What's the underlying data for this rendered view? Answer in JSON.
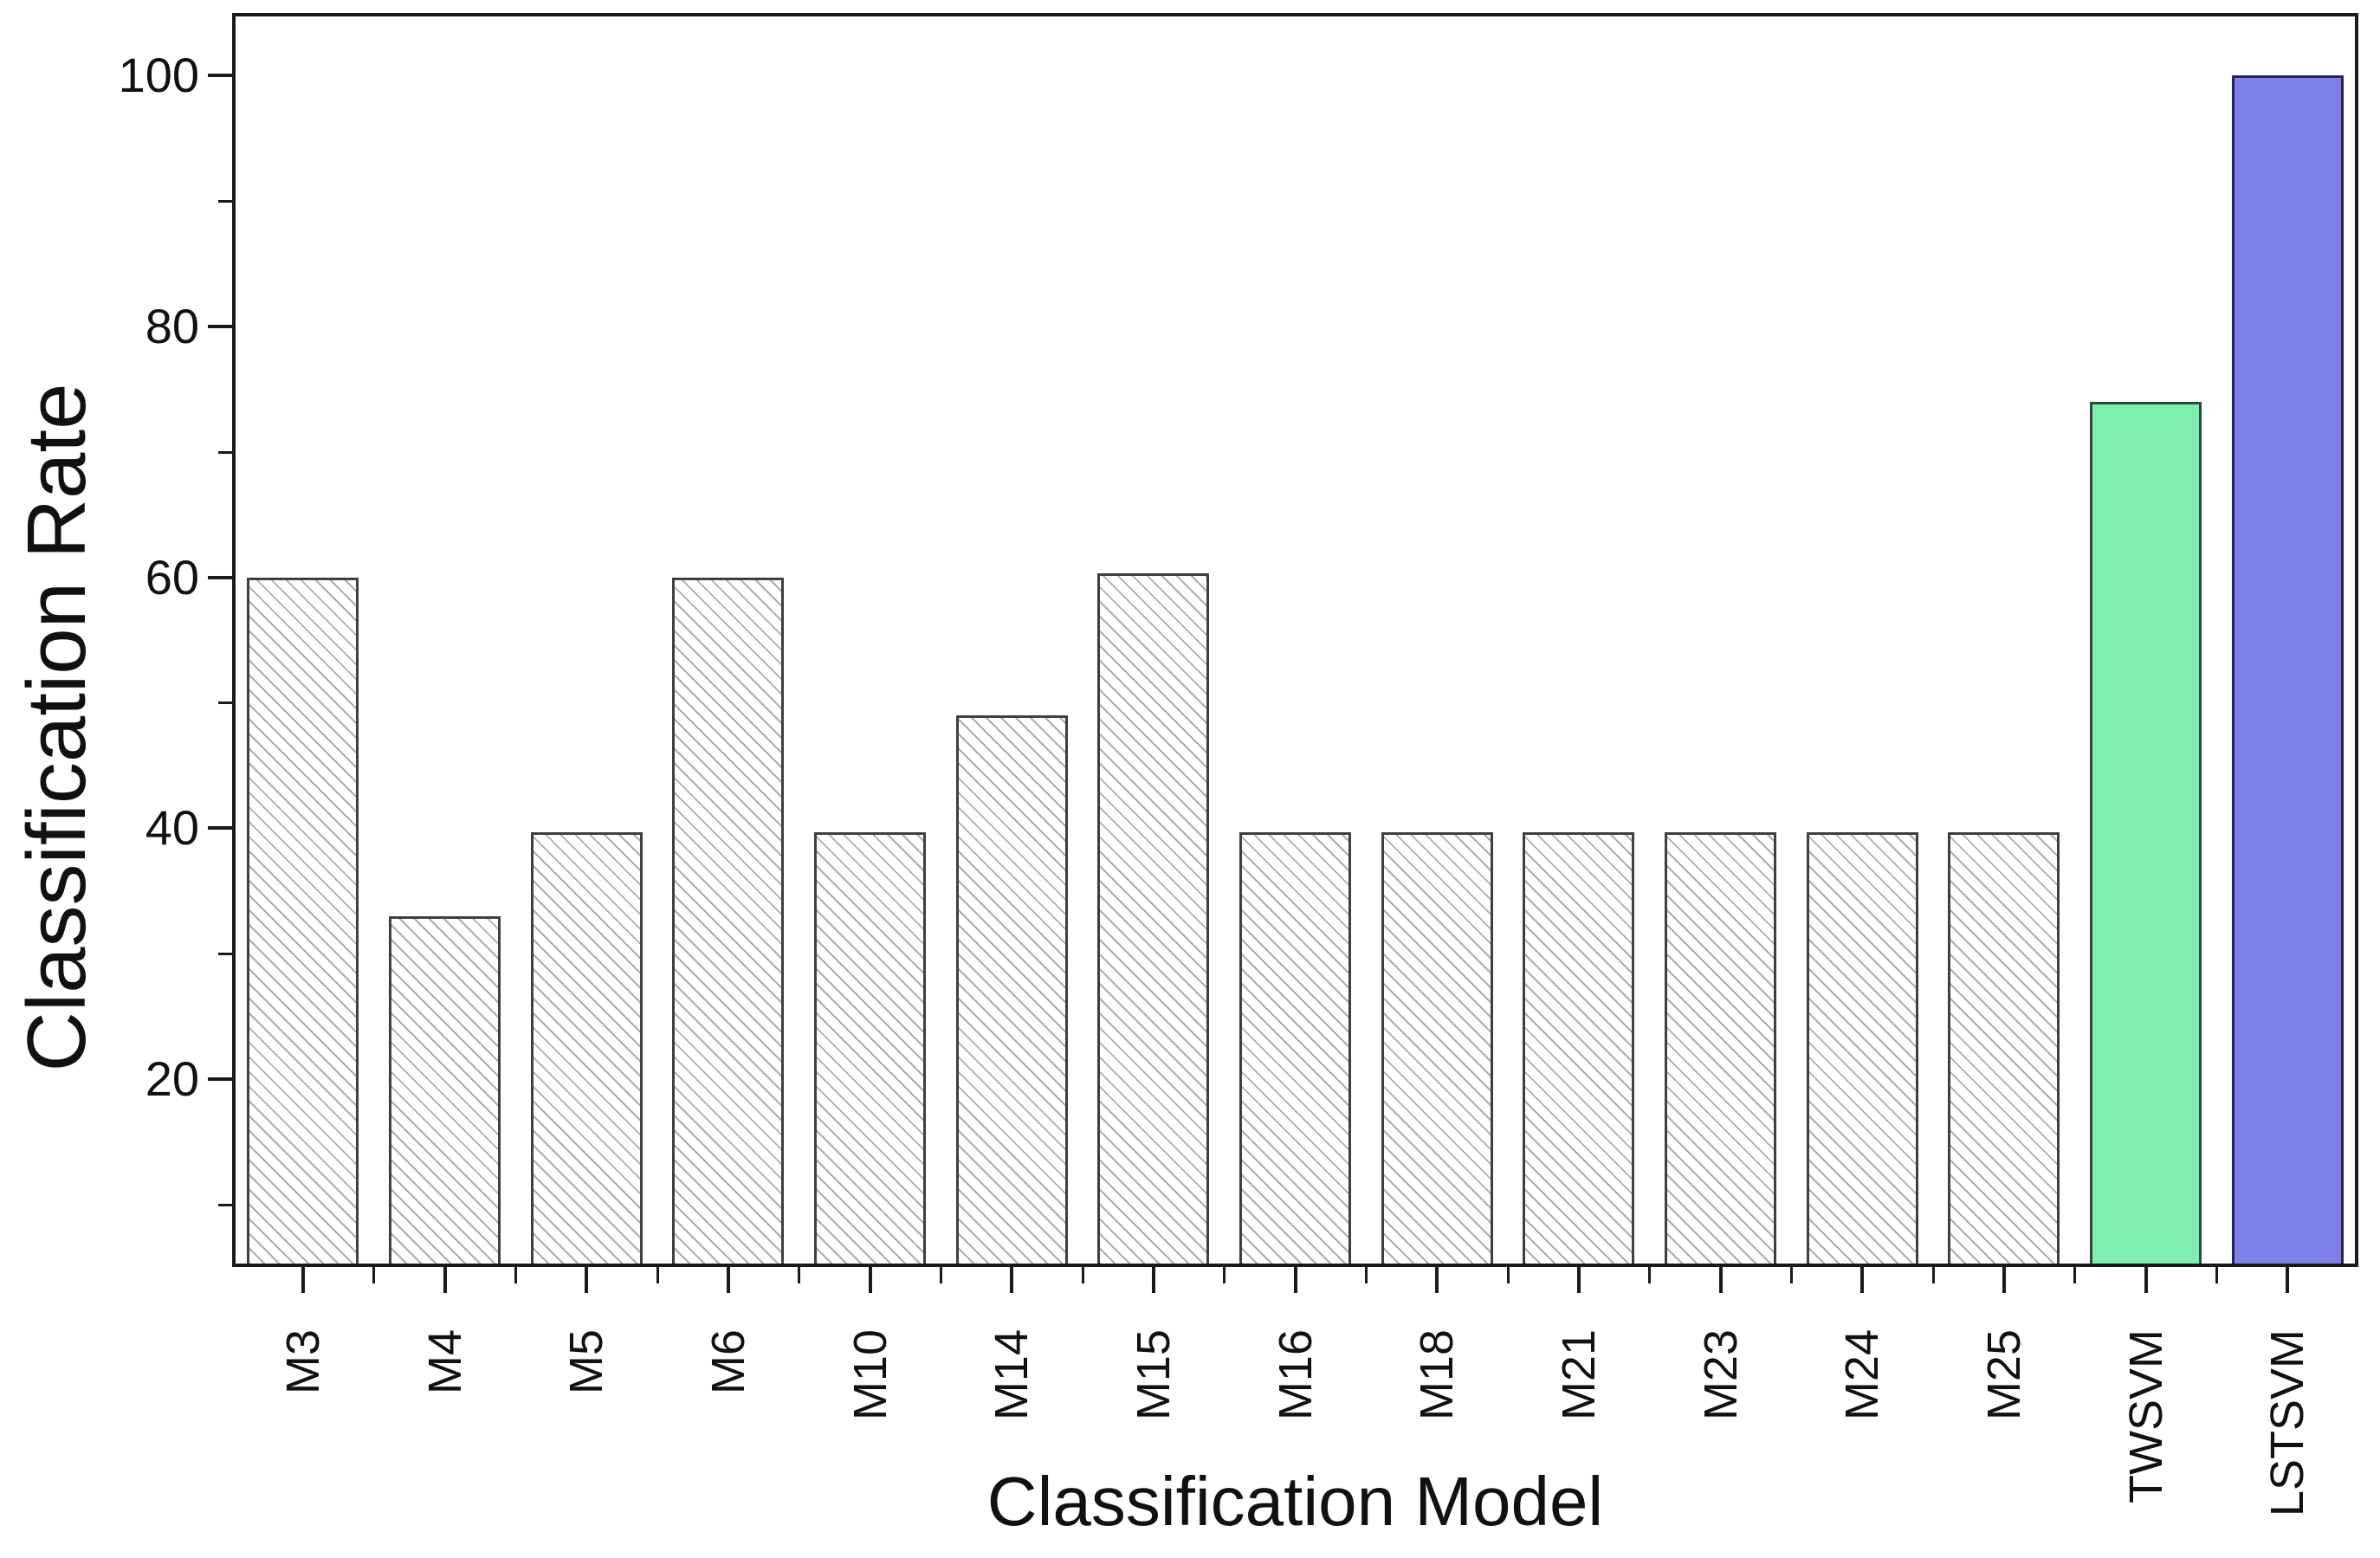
{
  "chart_data": {
    "type": "bar",
    "title": "",
    "xlabel": "Classification Model",
    "ylabel": "Classification Rate",
    "categories": [
      "M3",
      "M4",
      "M5",
      "M6",
      "M10",
      "M14",
      "M15",
      "M16",
      "M18",
      "M21",
      "M23",
      "M24",
      "M25",
      "TWSVM",
      "LSTSVM"
    ],
    "values": [
      60,
      33,
      39.7,
      60,
      39.7,
      49,
      60.3,
      39.7,
      39.7,
      39.7,
      39.7,
      39.7,
      39.7,
      74,
      100
    ],
    "bar_fills": [
      "hatch",
      "hatch",
      "hatch",
      "hatch",
      "hatch",
      "hatch",
      "hatch",
      "hatch",
      "hatch",
      "hatch",
      "hatch",
      "hatch",
      "hatch",
      "#7EEFAE",
      "#8080EA"
    ],
    "bar_borders": [
      "#3F3F3F",
      "#3F3F3F",
      "#3F3F3F",
      "#3F3F3F",
      "#3F3F3F",
      "#3F3F3F",
      "#3F3F3F",
      "#3F3F3F",
      "#3F3F3F",
      "#3F3F3F",
      "#3F3F3F",
      "#3F3F3F",
      "#3F3F3F",
      "#2D4B3C",
      "#23235C"
    ],
    "ylim": [
      5,
      105
    ],
    "yticks_major": [
      20,
      40,
      60,
      80,
      100
    ],
    "yticks_minor": [
      10,
      30,
      50,
      70,
      90
    ],
    "grid": false,
    "legend": null,
    "colors": {
      "axis": "#1a1a1a",
      "text": "#111111",
      "background": "#ffffff",
      "hatch_fill": "#ffffff",
      "hatch_line": "#696969",
      "twsvm_fill": "#7EEFAE",
      "lstsvm_fill": "#8080EA"
    }
  }
}
